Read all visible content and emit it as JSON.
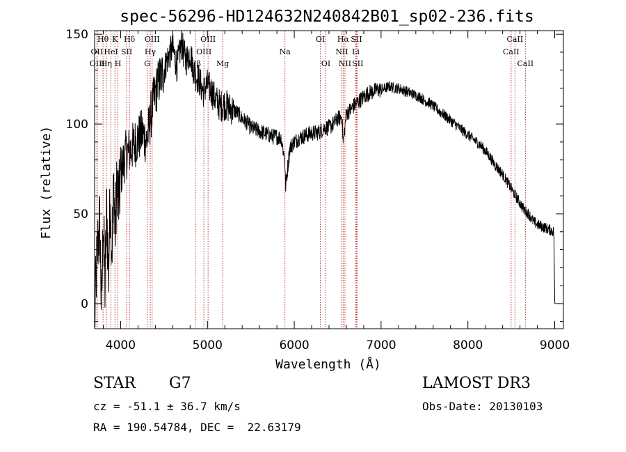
{
  "chart_data": {
    "type": "line",
    "title": "spec-56296-HD124632N240842B01_sp02-236.fits",
    "xlabel": "Wavelength (Å)",
    "ylabel": "Flux (relative)",
    "xlim": [
      3700,
      9100
    ],
    "ylim": [
      -14,
      152
    ],
    "xticks": [
      4000,
      5000,
      6000,
      7000,
      8000,
      9000
    ],
    "yticks": [
      0,
      50,
      100,
      150
    ],
    "grid": false,
    "series": [
      {
        "color": "#000000",
        "x": [
          3700,
          3720,
          3740,
          3760,
          3780,
          3800,
          3820,
          3840,
          3860,
          3880,
          3900,
          3920,
          3940,
          3960,
          3980,
          4000,
          4050,
          4100,
          4150,
          4200,
          4250,
          4300,
          4350,
          4400,
          4450,
          4500,
          4550,
          4600,
          4650,
          4700,
          4750,
          4800,
          4850,
          4900,
          4950,
          5000,
          5050,
          5100,
          5150,
          5200,
          5250,
          5300,
          5350,
          5400,
          5450,
          5500,
          5550,
          5600,
          5650,
          5700,
          5750,
          5800,
          5850,
          5890,
          5900,
          5950,
          6000,
          6050,
          6100,
          6150,
          6200,
          6250,
          6300,
          6350,
          6400,
          6450,
          6500,
          6550,
          6563,
          6600,
          6650,
          6700,
          6750,
          6800,
          6850,
          6900,
          6950,
          7000,
          7050,
          7100,
          7150,
          7200,
          7250,
          7300,
          7350,
          7400,
          7450,
          7500,
          7550,
          7600,
          7650,
          7700,
          7750,
          7800,
          7850,
          7900,
          7950,
          8000,
          8050,
          8100,
          8150,
          8200,
          8250,
          8300,
          8350,
          8400,
          8450,
          8500,
          8550,
          8600,
          8650,
          8700,
          8750,
          8800,
          8850,
          8900,
          8950,
          8990,
          9000,
          9010
        ],
        "y": [
          -12,
          18,
          35,
          45,
          -5,
          48,
          8,
          55,
          15,
          60,
          30,
          65,
          40,
          70,
          55,
          72,
          82,
          85,
          88,
          92,
          95,
          90,
          105,
          118,
          125,
          130,
          138,
          142,
          132,
          145,
          135,
          140,
          128,
          125,
          118,
          122,
          118,
          113,
          110,
          111,
          109,
          108,
          106,
          103,
          101,
          98,
          97,
          96,
          95,
          94,
          93,
          93,
          92,
          80,
          65,
          87,
          90,
          92,
          93,
          94,
          95,
          95,
          96,
          98,
          98,
          100,
          103,
          104,
          89,
          106,
          108,
          111,
          113,
          115,
          117,
          118,
          119,
          119,
          120,
          121,
          120,
          120,
          119,
          118,
          117,
          116,
          115,
          113,
          112,
          110,
          108,
          106,
          104,
          102,
          100,
          98,
          96,
          94,
          92,
          90,
          88,
          85,
          82,
          78,
          75,
          72,
          68,
          64,
          60,
          56,
          52,
          50,
          46,
          44,
          43,
          42,
          41,
          40,
          0,
          1
        ]
      }
    ],
    "annotations": [
      {
        "label": "Hθ",
        "x": 3797,
        "row": 1
      },
      {
        "label": "OII",
        "x": 3727,
        "row": 2
      },
      {
        "label": "OIII",
        "x": 3730,
        "row": 3
      },
      {
        "label": "K",
        "x": 3934,
        "row": 1
      },
      {
        "label": "HeI",
        "x": 3889,
        "row": 2
      },
      {
        "label": "Hη",
        "x": 3835,
        "row": 3
      },
      {
        "label": "Hδ",
        "x": 4102,
        "row": 1
      },
      {
        "label": "SII",
        "x": 4069,
        "row": 2
      },
      {
        "label": "H",
        "x": 3969,
        "row": 3
      },
      {
        "label": "OIII",
        "x": 4363,
        "row": 1
      },
      {
        "label": "Hγ",
        "x": 4341,
        "row": 2
      },
      {
        "label": "G",
        "x": 4305,
        "row": 3
      },
      {
        "label": "OIII",
        "x": 5007,
        "row": 1
      },
      {
        "label": "OIII",
        "x": 4959,
        "row": 2
      },
      {
        "label": "Hβ",
        "x": 4861,
        "row": 3
      },
      {
        "label": "Mg",
        "x": 5175,
        "row": 3
      },
      {
        "label": "Na",
        "x": 5893,
        "row": 2
      },
      {
        "label": "OI",
        "x": 6300,
        "row": 1
      },
      {
        "label": "OI",
        "x": 6364,
        "row": 3
      },
      {
        "label": "Hα",
        "x": 6563,
        "row": 1
      },
      {
        "label": "SII",
        "x": 6716,
        "row": 1
      },
      {
        "label": "NII",
        "x": 6548,
        "row": 2
      },
      {
        "label": "Li",
        "x": 6708,
        "row": 2
      },
      {
        "label": "NII",
        "x": 6584,
        "row": 3
      },
      {
        "label": "SII",
        "x": 6731,
        "row": 3
      },
      {
        "label": "CaII",
        "x": 8542,
        "row": 1
      },
      {
        "label": "CaII",
        "x": 8498,
        "row": 2
      },
      {
        "label": "CaII",
        "x": 8662,
        "row": 3
      }
    ]
  },
  "info": {
    "object_class": "STAR",
    "subclass": "G7",
    "survey": "LAMOST DR3",
    "cz": "cz = -51.1 ± 36.7 km/s",
    "obs_date": "Obs-Date: 20130103",
    "coords": "RA = 190.54784, DEC =  22.63179"
  }
}
